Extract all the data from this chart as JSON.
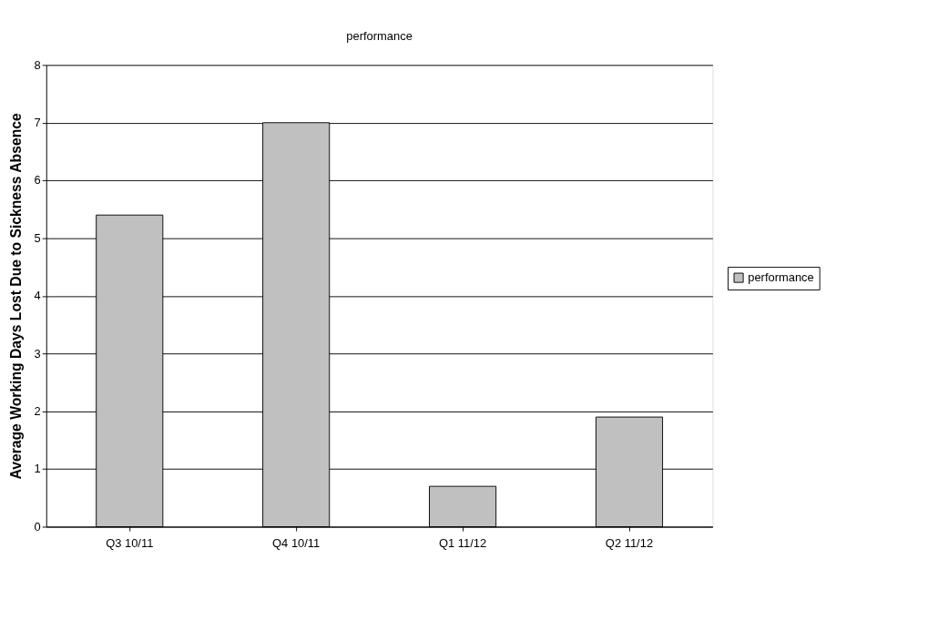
{
  "chart_data": {
    "type": "bar",
    "title": "performance",
    "ylabel": "Average Working Days Lost Due to Sickness Absence",
    "categories": [
      "Q3 10/11",
      "Q4 10/11",
      "Q1 11/12",
      "Q2 11/12"
    ],
    "series": [
      {
        "name": "performance",
        "color": "#c0c0c0",
        "values": [
          5.4,
          7.0,
          0.7,
          1.9
        ]
      }
    ],
    "ylim": [
      0,
      8
    ],
    "yticks": [
      0,
      1,
      2,
      3,
      4,
      5,
      6,
      7,
      8
    ],
    "grid": "y",
    "legend": "right"
  }
}
